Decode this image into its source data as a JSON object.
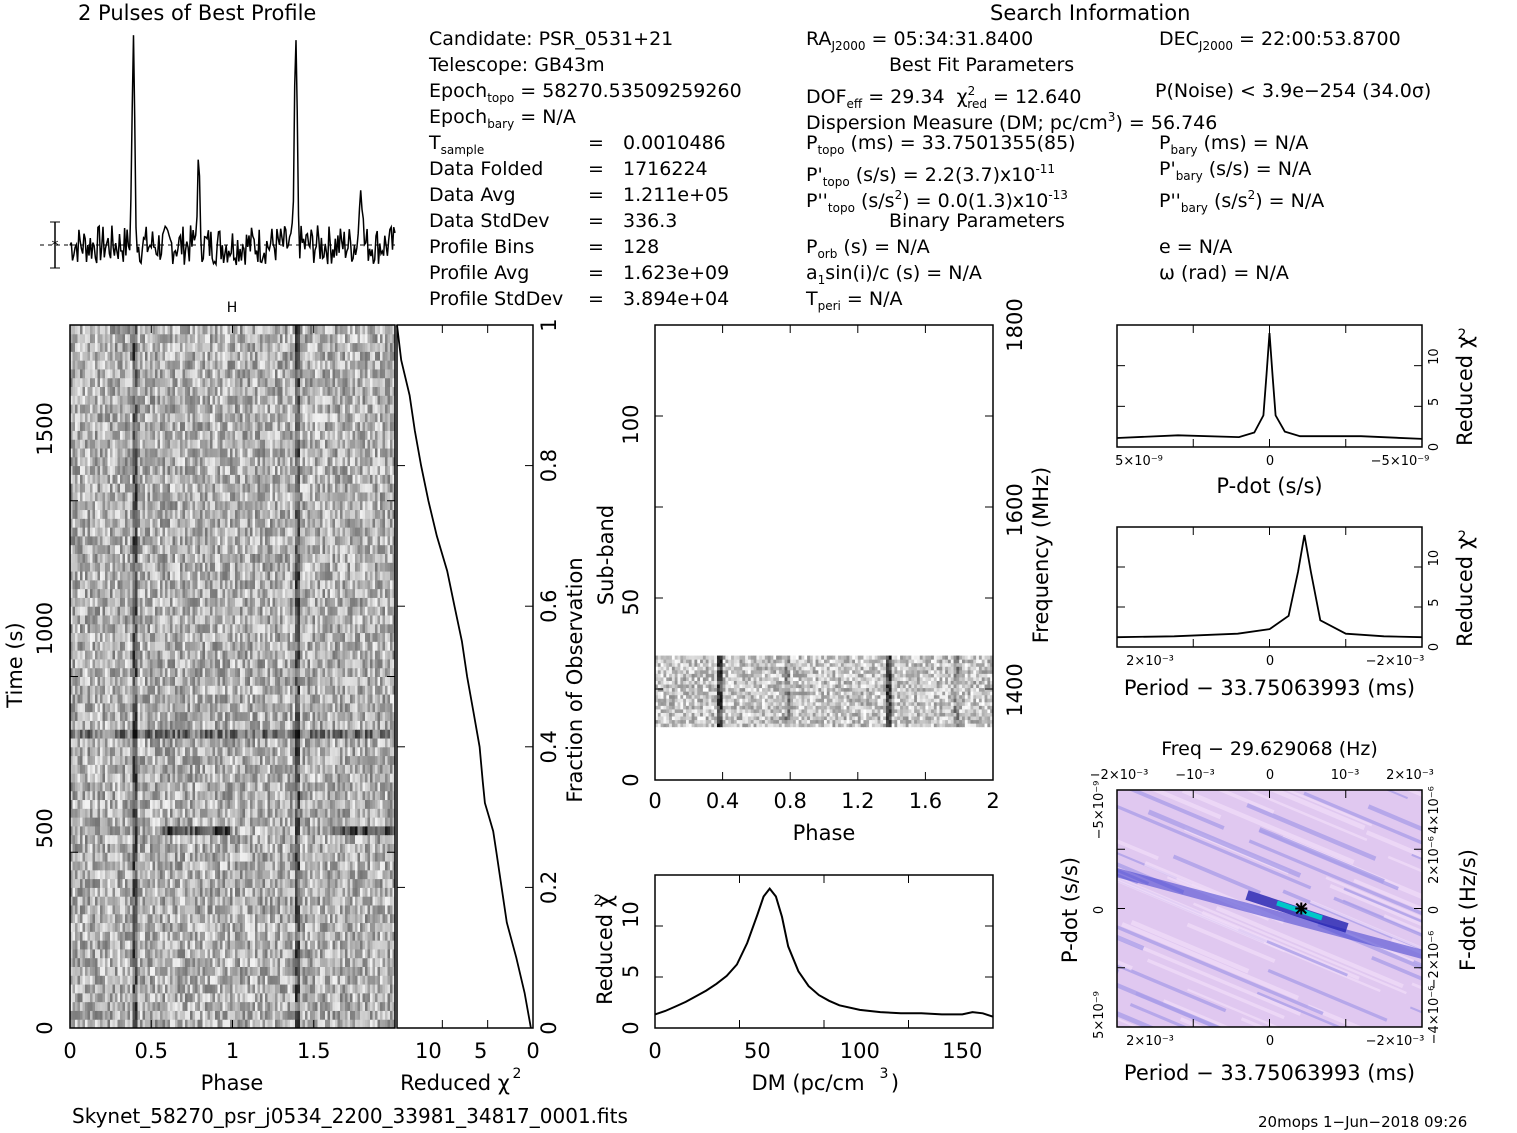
{
  "header": {
    "profile_title": "2 Pulses of Best Profile",
    "search_title": "Search Information",
    "best_fit_title": "Best Fit Parameters",
    "binary_title": "Binary Parameters"
  },
  "info_left": [
    {
      "label": "Candidate:  PSR_0531+21"
    },
    {
      "label": "Telescope:  GB43m"
    },
    {
      "label": "Epoch",
      "sub": "topo",
      "rest": " = 58270.53509259260"
    },
    {
      "label": "Epoch",
      "sub": "bary",
      "rest": " = N/A"
    },
    {
      "label": "T",
      "sub": "sample",
      "eq": "=",
      "val": "0.0010486"
    },
    {
      "label": "Data Folded",
      "eq": "=",
      "val": "1716224"
    },
    {
      "label": "Data Avg",
      "eq": "=",
      "val": "1.211e+05"
    },
    {
      "label": "Data StdDev",
      "eq": "=",
      "val": "336.3"
    },
    {
      "label": "Profile Bins",
      "eq": "=",
      "val": "128"
    },
    {
      "label": "Profile Avg",
      "eq": "=",
      "val": "1.623e+09"
    },
    {
      "label": "Profile StdDev",
      "eq": "=",
      "val": "3.894e+04"
    }
  ],
  "info_mid": {
    "ra_label": "RA",
    "ra_sub": "J2000",
    "ra_val": " = 05:34:31.8400",
    "dof_label": "DOF",
    "dof_sub": "eff",
    "dof_val": " = 29.34",
    "chi_val": " = 12.640",
    "dm_line": "Dispersion Measure (DM; pc/cm",
    "dm_val": ") = 56.746",
    "ptopo_label": "P",
    "ptopo_sub": "topo",
    "ptopo_val": " (ms) =  33.7501355(85)",
    "pdtopo_label": "P'",
    "pdtopo_sub": "topo",
    "pdtopo_val": " (s/s) =  2.2(3.7)x10",
    "pdtopo_exp": "-11",
    "pddtopo_label": "P''",
    "pddtopo_sub": "topo",
    "pddtopo_val": " (s/s",
    "pddtopo_val2": ") = 0.0(1.3)x10",
    "pddtopo_exp": "-13",
    "porb_label": "P",
    "porb_sub": "orb",
    "porb_val": " (s) = N/A",
    "a1_label": "a",
    "a1_sub": "1",
    "a1_val": "sin(i)/c (s) = N/A",
    "tperi_label": "T",
    "tperi_sub": "peri",
    "tperi_val": " = N/A"
  },
  "info_right": {
    "dec_label": "DEC",
    "dec_sub": "J2000",
    "dec_val": " = 22:00:53.8700",
    "pnoise": "P(Noise) < 3.9e−254  (34.0σ)",
    "pbary_label": "P",
    "pbary_sub": "bary",
    "pbary_val": " (ms) = N/A",
    "pdbary_label": "P'",
    "pdbary_sub": "bary",
    "pdbary_val": " (s/s) = N/A",
    "pddbary_label": "P''",
    "pddbary_sub": "bary",
    "pddbary_val": " (s/s",
    "pddbary_val2": ") = N/A",
    "e_val": "e = N/A",
    "omega_val": "ω (rad) = N/A"
  },
  "footer": {
    "filename": "Skynet_58270_psr_j0534_2200_33981_34817_0001.fits",
    "stamp": "20mops  1−Jun−2018 09:26"
  },
  "colors": {
    "grayscale": "#000000",
    "ppdot_bg": "#e0c8f0",
    "ppdot_peak": "#00c8c8"
  },
  "chart_data": [
    {
      "id": "profile",
      "type": "line",
      "title": "2 Pulses of Best Profile",
      "x_range": [
        0,
        2
      ],
      "peaks": [
        {
          "x": 0.39,
          "h": 1.0
        },
        {
          "x": 0.79,
          "h": 0.37
        },
        {
          "x": 1.39,
          "h": 1.0
        },
        {
          "x": 1.79,
          "h": 0.37
        }
      ],
      "errorbar_label": "*"
    },
    {
      "id": "time_phase",
      "type": "heatmap",
      "xlabel": "Phase",
      "ylabel": "Time (s)",
      "xticks": [
        "0",
        "0.5",
        "1",
        "1.5"
      ],
      "yticks": [
        "0",
        "500",
        "1000",
        "1500"
      ],
      "xlim": [
        0,
        2
      ],
      "ylim": [
        0,
        1800
      ],
      "colormap": "grayscale"
    },
    {
      "id": "chi_vs_fraction",
      "type": "line",
      "xlabel": "Reduced χ",
      "ylabel": "Fraction of Observation",
      "xticks": [
        "10",
        "5",
        "0"
      ],
      "yticks": [
        "0",
        "0.2",
        "0.4",
        "0.6",
        "0.8",
        "1"
      ],
      "xlim": [
        13,
        0
      ],
      "ylim": [
        0,
        1
      ],
      "x": [
        0.2,
        0.8,
        1.6,
        2.5,
        3.0,
        3.5,
        3.8,
        4.2,
        4.6,
        4.8,
        5.1,
        5.7,
        6.3,
        6.8,
        7.5,
        8.2,
        9.2,
        10.0,
        10.7,
        11.3,
        11.8,
        12.6,
        13.0
      ],
      "y": [
        0.0,
        0.05,
        0.1,
        0.15,
        0.2,
        0.25,
        0.28,
        0.3,
        0.32,
        0.35,
        0.4,
        0.45,
        0.5,
        0.55,
        0.6,
        0.65,
        0.7,
        0.75,
        0.8,
        0.85,
        0.9,
        0.95,
        1.0
      ]
    },
    {
      "id": "subband_phase",
      "type": "heatmap",
      "xlabel": "Phase",
      "ylabel": "Sub-band",
      "y2label": "Frequency (MHz)",
      "xticks": [
        "0",
        "0.4",
        "0.8",
        "1.2",
        "1.6",
        "2"
      ],
      "yticks": [
        "0",
        "50",
        "100"
      ],
      "y2ticks": [
        "1400",
        "1600",
        "1800"
      ],
      "xlim": [
        0,
        2
      ],
      "ylim": [
        0,
        128
      ],
      "band_range": [
        15,
        35
      ],
      "pulse_phases": [
        0.38,
        0.78,
        1.38,
        1.78
      ]
    },
    {
      "id": "dm_curve",
      "type": "line",
      "xlabel": "DM (pc/cm",
      "ylabel": "Reduced χ",
      "xticks": [
        "0",
        "50",
        "100",
        "150"
      ],
      "yticks": [
        "0",
        "5",
        "10"
      ],
      "xlim": [
        0,
        165
      ],
      "ylim": [
        0,
        13.5
      ],
      "x": [
        0,
        5,
        10,
        15,
        20,
        25,
        30,
        35,
        40,
        45,
        50,
        53,
        56,
        59,
        62,
        65,
        70,
        75,
        80,
        85,
        90,
        100,
        110,
        120,
        130,
        140,
        150,
        155,
        160,
        165
      ],
      "y": [
        1.2,
        1.5,
        1.9,
        2.3,
        2.8,
        3.3,
        3.9,
        4.6,
        5.6,
        7.5,
        10.0,
        11.6,
        12.3,
        11.6,
        9.8,
        7.2,
        5.0,
        3.7,
        2.9,
        2.4,
        2.0,
        1.6,
        1.4,
        1.3,
        1.3,
        1.2,
        1.2,
        1.4,
        1.3,
        1.0
      ]
    },
    {
      "id": "pdot_curve",
      "type": "line",
      "xlabel": "P-dot (s/s)",
      "ylabel": "Reduced χ",
      "xticks": [
        "5×10⁻⁹",
        "0",
        "−5×10⁻⁹"
      ],
      "yticks": [
        "0",
        "5",
        "10"
      ],
      "xlim": [
        5e-09,
        -5e-09
      ],
      "ylim": [
        0,
        13.5
      ],
      "x": [
        5e-09,
        3e-09,
        1e-09,
        5e-10,
        2e-10,
        1e-10,
        0,
        -1e-10,
        -2e-10,
        -5e-10,
        -1e-09,
        -3e-09,
        -5e-09
      ],
      "y": [
        1.0,
        1.3,
        1.1,
        1.6,
        3.5,
        8.0,
        12.6,
        8.0,
        3.5,
        1.7,
        1.2,
        1.2,
        0.9
      ]
    },
    {
      "id": "period_curve",
      "type": "line",
      "xlabel": "Period − 33.75063993 (ms)",
      "ylabel": "Reduced χ",
      "xticks": [
        "2×10⁻³",
        "0",
        "−2×10⁻³"
      ],
      "yticks": [
        "0",
        "5",
        "10"
      ],
      "xlim": [
        0.0024,
        -0.0024
      ],
      "ylim": [
        0,
        13.5
      ],
      "x": [
        0.0024,
        0.0015,
        0.0005,
        0.0,
        -0.0003,
        -0.00045,
        -0.00055,
        -0.00065,
        -0.0008,
        -0.0012,
        -0.0018,
        -0.0024
      ],
      "y": [
        1.1,
        1.2,
        1.5,
        2.0,
        3.5,
        8.5,
        12.6,
        8.5,
        3.0,
        1.5,
        1.2,
        1.1
      ]
    },
    {
      "id": "ppdot_plane",
      "type": "heatmap",
      "title": "Freq − 29.629068 (Hz)",
      "xlabel": "Period − 33.75063993 (ms)",
      "ylabel": "P-dot (s/s)",
      "y2label": "F-dot (Hz/s)",
      "top_xticks": [
        "−2×10⁻³",
        "−10⁻³",
        "0",
        "10⁻³",
        "2×10⁻³"
      ],
      "bottom_xticks": [
        "2×10⁻³",
        "0",
        "−2×10⁻³"
      ],
      "left_yticks": [
        "−5×10⁻⁹",
        "0",
        "5×10⁻⁹"
      ],
      "right_yticks": [
        "4×10⁻⁶",
        "2×10⁻⁶",
        "0",
        "−2×10⁻⁶",
        "−4×10⁻⁶"
      ],
      "best_point": {
        "period": -0.0005,
        "pdot": 0
      }
    }
  ]
}
